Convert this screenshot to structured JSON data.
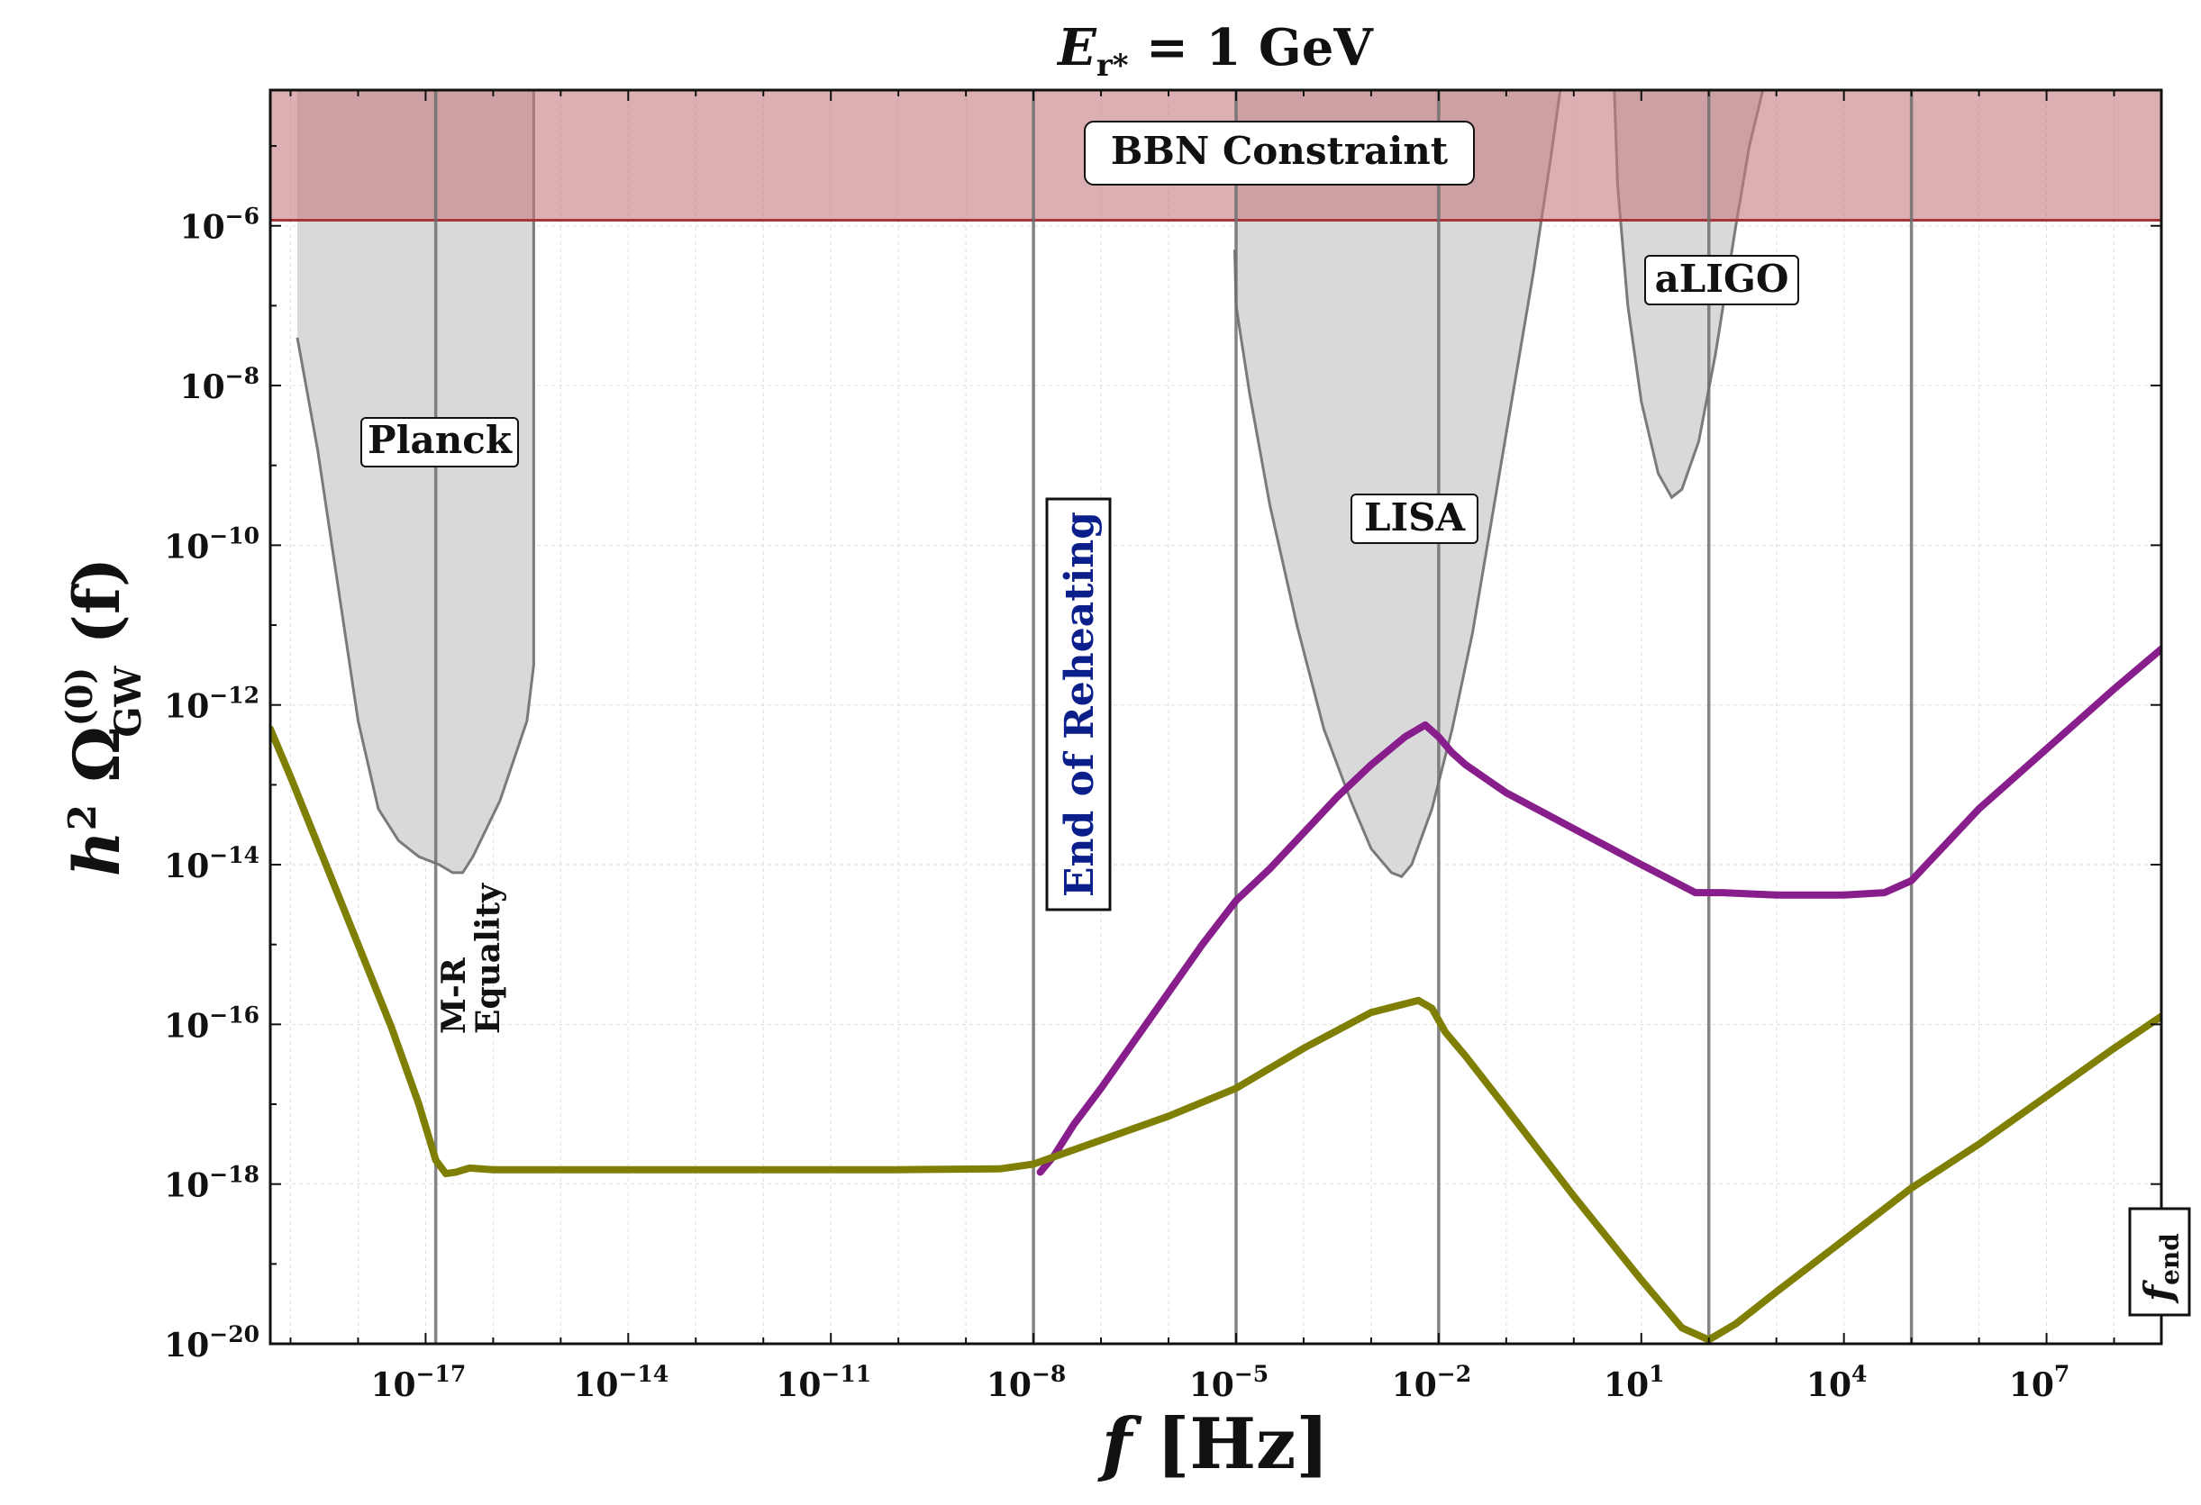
{
  "chart_data": {
    "type": "line",
    "title": {
      "main": "E",
      "sub": "r*",
      "rest": " = 1 GeV"
    },
    "xlabel": {
      "main": "f",
      "unit": " [Hz]"
    },
    "ylabel": {
      "pre": "h",
      "sq": "2",
      "omega": " Ω",
      "sup": "(0)",
      "sub": "GW",
      "post": " (f)"
    },
    "x_scale": "log10",
    "y_scale": "log10",
    "xlim_log10": [
      -19.3,
      8.7
    ],
    "ylim_log10": [
      -20,
      -4.3
    ],
    "x_ticks": [
      {
        "log": -17,
        "base": "10",
        "exp": "−17"
      },
      {
        "log": -14,
        "base": "10",
        "exp": "−14"
      },
      {
        "log": -11,
        "base": "10",
        "exp": "−11"
      },
      {
        "log": -8,
        "base": "10",
        "exp": "−8"
      },
      {
        "log": -5,
        "base": "10",
        "exp": "−5"
      },
      {
        "log": -2,
        "base": "10",
        "exp": "−2"
      },
      {
        "log": 1,
        "base": "10",
        "exp": "1"
      },
      {
        "log": 4,
        "base": "10",
        "exp": "4"
      },
      {
        "log": 7,
        "base": "10",
        "exp": "7"
      }
    ],
    "y_ticks": [
      {
        "log": -6,
        "base": "10",
        "exp": "−6"
      },
      {
        "log": -8,
        "base": "10",
        "exp": "−8"
      },
      {
        "log": -10,
        "base": "10",
        "exp": "−10"
      },
      {
        "log": -12,
        "base": "10",
        "exp": "−12"
      },
      {
        "log": -14,
        "base": "10",
        "exp": "−14"
      },
      {
        "log": -16,
        "base": "10",
        "exp": "−16"
      },
      {
        "log": -18,
        "base": "10",
        "exp": "−18"
      },
      {
        "log": -20,
        "base": "10",
        "exp": "−20"
      }
    ],
    "bbn": {
      "label": "BBN Constraint",
      "ymin_log10": -5.93,
      "color": "#c47a80"
    },
    "vertical_lines": [
      {
        "name": "mr-equality-line",
        "x_log10": -16.85
      },
      {
        "name": "reheating-line",
        "x_log10": -8.0
      },
      {
        "name": "vline-1e-5",
        "x_log10": -5.0
      },
      {
        "name": "vline-1e-2",
        "x_log10": -2.0
      },
      {
        "name": "vline-1e2",
        "x_log10": 2.0
      },
      {
        "name": "vline-1e5",
        "x_log10": 5.0
      }
    ],
    "sensitivity_curves": [
      {
        "name": "Planck",
        "points": [
          [
            -18.9,
            -7.4
          ],
          [
            -18.6,
            -8.8
          ],
          [
            -18.3,
            -10.5
          ],
          [
            -18.0,
            -12.2
          ],
          [
            -17.7,
            -13.3
          ],
          [
            -17.4,
            -13.7
          ],
          [
            -17.1,
            -13.9
          ],
          [
            -16.8,
            -14.0
          ],
          [
            -16.6,
            -14.1
          ],
          [
            -16.45,
            -14.1
          ],
          [
            -16.3,
            -13.9
          ],
          [
            -15.9,
            -13.2
          ],
          [
            -15.7,
            -12.7
          ],
          [
            -15.5,
            -12.2
          ],
          [
            -15.4,
            -11.5
          ],
          [
            -15.4,
            -4.3
          ]
        ]
      },
      {
        "name": "LISA",
        "points": [
          [
            -5.02,
            -6.3
          ],
          [
            -5.0,
            -7.0
          ],
          [
            -4.8,
            -8.1
          ],
          [
            -4.5,
            -9.5
          ],
          [
            -4.1,
            -11.0
          ],
          [
            -3.7,
            -12.3
          ],
          [
            -3.3,
            -13.2
          ],
          [
            -3.0,
            -13.8
          ],
          [
            -2.7,
            -14.1
          ],
          [
            -2.55,
            -14.15
          ],
          [
            -2.4,
            -14.0
          ],
          [
            -2.1,
            -13.3
          ],
          [
            -1.8,
            -12.3
          ],
          [
            -1.5,
            -11.1
          ],
          [
            -1.2,
            -9.6
          ],
          [
            -0.9,
            -8.1
          ],
          [
            -0.6,
            -6.6
          ],
          [
            -0.35,
            -5.2
          ],
          [
            -0.2,
            -4.3
          ]
        ]
      },
      {
        "name": "aLIGO",
        "points": [
          [
            0.6,
            -4.3
          ],
          [
            0.65,
            -5.5
          ],
          [
            0.8,
            -7.0
          ],
          [
            1.0,
            -8.2
          ],
          [
            1.25,
            -9.1
          ],
          [
            1.45,
            -9.4
          ],
          [
            1.6,
            -9.3
          ],
          [
            1.85,
            -8.7
          ],
          [
            2.1,
            -7.6
          ],
          [
            2.4,
            -6.0
          ],
          [
            2.6,
            -5.0
          ],
          [
            2.8,
            -4.3
          ]
        ]
      }
    ],
    "series": [
      {
        "name": "purple",
        "color": "#881d8c",
        "points": [
          [
            -7.9,
            -17.85
          ],
          [
            -7.7,
            -17.65
          ],
          [
            -7.4,
            -17.25
          ],
          [
            -7.0,
            -16.8
          ],
          [
            -6.5,
            -16.2
          ],
          [
            -6.0,
            -15.6
          ],
          [
            -5.5,
            -15.0
          ],
          [
            -5.0,
            -14.45
          ],
          [
            -4.5,
            -14.05
          ],
          [
            -4.0,
            -13.6
          ],
          [
            -3.5,
            -13.15
          ],
          [
            -3.0,
            -12.75
          ],
          [
            -2.5,
            -12.4
          ],
          [
            -2.2,
            -12.25
          ],
          [
            -2.0,
            -12.4
          ],
          [
            -1.8,
            -12.6
          ],
          [
            -1.6,
            -12.75
          ],
          [
            -1.0,
            -13.1
          ],
          [
            0.0,
            -13.55
          ],
          [
            1.0,
            -14.0
          ],
          [
            1.8,
            -14.35
          ],
          [
            2.2,
            -14.35
          ],
          [
            3.0,
            -14.38
          ],
          [
            4.0,
            -14.38
          ],
          [
            4.6,
            -14.35
          ],
          [
            5.0,
            -14.2
          ],
          [
            5.5,
            -13.75
          ],
          [
            6.0,
            -13.3
          ],
          [
            7.0,
            -12.55
          ],
          [
            8.0,
            -11.8
          ],
          [
            8.7,
            -11.3
          ]
        ]
      },
      {
        "name": "olive",
        "color": "#7f7f05",
        "points": [
          [
            -19.3,
            -12.3
          ],
          [
            -19.0,
            -12.9
          ],
          [
            -18.5,
            -13.95
          ],
          [
            -18.0,
            -15.0
          ],
          [
            -17.5,
            -16.05
          ],
          [
            -17.1,
            -17.0
          ],
          [
            -16.85,
            -17.7
          ],
          [
            -16.7,
            -17.87
          ],
          [
            -16.55,
            -17.85
          ],
          [
            -16.35,
            -17.8
          ],
          [
            -16.0,
            -17.82
          ],
          [
            -14.0,
            -17.82
          ],
          [
            -12.0,
            -17.82
          ],
          [
            -10.0,
            -17.82
          ],
          [
            -8.5,
            -17.81
          ],
          [
            -8.0,
            -17.75
          ],
          [
            -7.5,
            -17.6
          ],
          [
            -7.0,
            -17.45
          ],
          [
            -6.0,
            -17.15
          ],
          [
            -5.0,
            -16.8
          ],
          [
            -4.5,
            -16.55
          ],
          [
            -4.0,
            -16.3
          ],
          [
            -3.0,
            -15.85
          ],
          [
            -2.3,
            -15.7
          ],
          [
            -2.1,
            -15.8
          ],
          [
            -1.9,
            -16.1
          ],
          [
            -1.6,
            -16.4
          ],
          [
            -1.0,
            -17.05
          ],
          [
            0.0,
            -18.15
          ],
          [
            1.0,
            -19.2
          ],
          [
            1.6,
            -19.8
          ],
          [
            2.0,
            -19.95
          ],
          [
            2.4,
            -19.75
          ],
          [
            3.0,
            -19.35
          ],
          [
            4.0,
            -18.7
          ],
          [
            5.0,
            -18.05
          ],
          [
            6.0,
            -17.5
          ],
          [
            7.0,
            -16.9
          ],
          [
            8.0,
            -16.3
          ],
          [
            8.7,
            -15.9
          ]
        ]
      }
    ],
    "labels": {
      "planck": "Planck",
      "lisa": "LISA",
      "aligo": "aLIGO",
      "mr_line1": "M-R",
      "mr_line2": "Equality",
      "reheating": "End of Reheating",
      "fend_main": "f",
      "fend_sub": "end"
    }
  }
}
